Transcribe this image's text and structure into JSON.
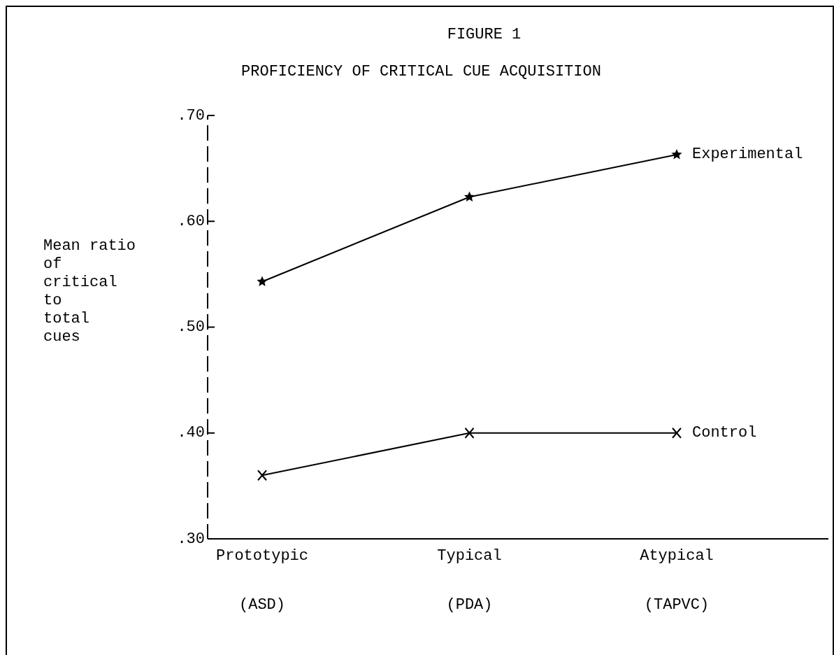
{
  "chart_data": {
    "type": "line",
    "title": "FIGURE 1",
    "subtitle": "PROFICIENCY OF CRITICAL CUE ACQUISITION",
    "ylabel": "Mean ratio\nof\ncritical\nto\ntotal\ncues",
    "categories": [
      "Prototypic\n(ASD)",
      "Typical\n(PDA)",
      "Atypical\n(TAPVC)"
    ],
    "series": [
      {
        "name": "Experimental",
        "color": "#000000",
        "values": [
          0.543,
          0.623,
          0.663
        ],
        "marker": "star"
      },
      {
        "name": "Control",
        "color": "#000000",
        "values": [
          0.36,
          0.4,
          0.4
        ],
        "marker": "cross"
      }
    ],
    "ylim": [
      0.3,
      0.7
    ],
    "yticks": [
      {
        "value": 0.3,
        "label": ".30"
      },
      {
        "value": 0.4,
        "label": ".40"
      },
      {
        "value": 0.5,
        "label": ".50"
      },
      {
        "value": 0.6,
        "label": ".60"
      },
      {
        "value": 0.7,
        "label": ".70"
      }
    ],
    "legend": false,
    "grid": false,
    "line_style": "solid"
  }
}
